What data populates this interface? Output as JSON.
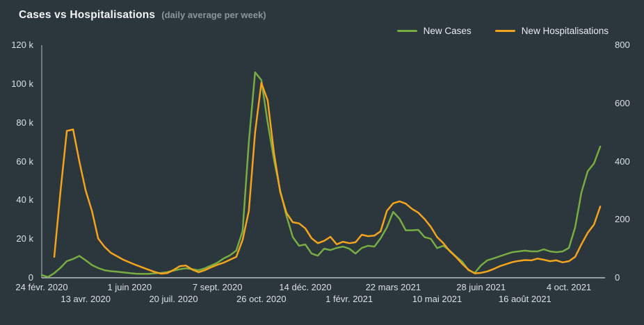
{
  "colors": {
    "background": "#2c363d",
    "title_text": "#f3f5f6",
    "subtitle_text": "#8b959c",
    "tick_text": "#dbe0e3",
    "axis_line_x": "#d7dbde",
    "axis_line_y": "#b3bcc1",
    "cases_green": "#77ad42",
    "hospitalisations_orange": "#f4a41d"
  },
  "chart_data": {
    "type": "line",
    "title": "Cases vs Hospitalisations",
    "subtitle": "(daily average per week)",
    "grid": false,
    "legend_position": "top-right",
    "x_axis": {
      "unit": "weeks since 24 févr. 2020 (weekly points)",
      "tick_weeks": [
        0,
        7,
        14,
        21,
        28,
        35,
        42,
        49,
        56,
        63,
        70,
        77,
        84
      ],
      "tick_labels": [
        "24 févr. 2020",
        "13 avr. 2020",
        "1 juin 2020",
        "20 juil. 2020",
        "7 sept. 2020",
        "26 oct. 2020",
        "14 déc. 2020",
        "1 févr. 2021",
        "22 mars 2021",
        "10 mai 2021",
        "28 juin 2021",
        "16 août 2021",
        "4 oct. 2021"
      ]
    },
    "left_axis": {
      "tick_labels": [
        "0",
        "20 k",
        "40 k",
        "60 k",
        "80 k",
        "100 k",
        "120 k"
      ],
      "tick_values": [
        0,
        20000,
        40000,
        60000,
        80000,
        100000,
        120000
      ],
      "range": [
        0,
        120000
      ]
    },
    "right_axis": {
      "tick_labels": [
        "0",
        "200",
        "400",
        "600",
        "800"
      ],
      "tick_values": [
        0,
        200,
        400,
        600,
        800
      ],
      "range": [
        0,
        800
      ]
    },
    "series": [
      {
        "name": "New Cases",
        "color": "#77ad42",
        "axis": "left",
        "start_week": 0,
        "weekly_values": [
          1400,
          400,
          2400,
          5200,
          8600,
          9700,
          11300,
          9000,
          6600,
          5000,
          3900,
          3400,
          3100,
          2800,
          2400,
          2100,
          2000,
          2000,
          2300,
          2500,
          2900,
          3700,
          4400,
          4900,
          4400,
          3900,
          4900,
          6300,
          7800,
          10000,
          11600,
          14000,
          24000,
          70000,
          106000,
          102000,
          80000,
          61000,
          45000,
          32000,
          21000,
          16500,
          17200,
          12500,
          11400,
          15000,
          14300,
          15400,
          16100,
          15000,
          12500,
          15400,
          16500,
          16100,
          20400,
          26000,
          34000,
          30500,
          24500,
          24500,
          24700,
          21000,
          20100,
          15300,
          16500,
          14100,
          11000,
          8300,
          3900,
          2500,
          6400,
          9000,
          10000,
          11100,
          12200,
          13200,
          13600,
          14000,
          13600,
          13600,
          14700,
          13600,
          13200,
          13600,
          15400,
          26000,
          44000,
          55000,
          59000,
          67700
        ]
      },
      {
        "name": "New Hospitalisations",
        "color": "#f4a41d",
        "axis": "right",
        "start_week": 2,
        "weekly_values": [
          72,
          300,
          505,
          510,
          400,
          300,
          230,
          135,
          107,
          86,
          74,
          62,
          53,
          44,
          36,
          28,
          20,
          14,
          16,
          27,
          40,
          42,
          28,
          19,
          26,
          36,
          45,
          52,
          62,
          72,
          130,
          230,
          500,
          670,
          610,
          430,
          295,
          223,
          191,
          187,
          170,
          136,
          119,
          127,
          141,
          115,
          124,
          119,
          122,
          148,
          143,
          145,
          160,
          230,
          256,
          263,
          255,
          237,
          224,
          202,
          175,
          140,
          119,
          92,
          72,
          48,
          28,
          15,
          17,
          22,
          30,
          40,
          47,
          54,
          58,
          61,
          60,
          66,
          62,
          57,
          60,
          53,
          57,
          72,
          115,
          155,
          183,
          245
        ]
      }
    ]
  }
}
